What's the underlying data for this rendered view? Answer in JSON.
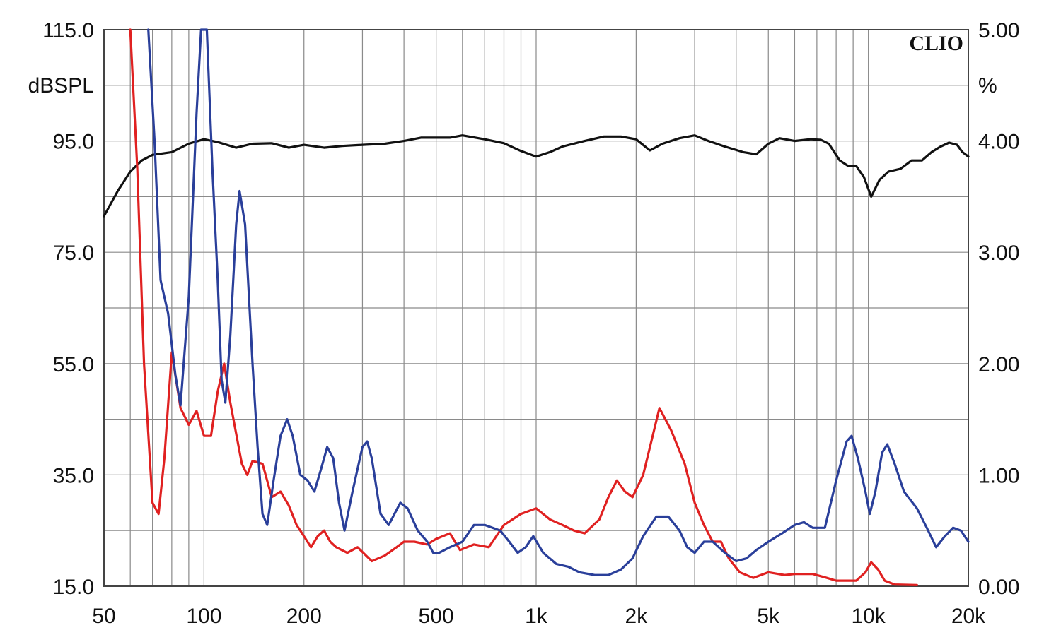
{
  "chart_data": {
    "type": "line",
    "brand": "CLIO",
    "ylabel": "dBSPL",
    "ylabel_right": "%",
    "xscale": "log",
    "xlim": [
      50,
      20000
    ],
    "ylim": [
      15,
      115
    ],
    "ylim_right": [
      0,
      5
    ],
    "grid": true,
    "x_ticks": [
      {
        "v": 50,
        "label": "50"
      },
      {
        "v": 100,
        "label": "100"
      },
      {
        "v": 200,
        "label": "200"
      },
      {
        "v": 500,
        "label": "500"
      },
      {
        "v": 1000,
        "label": "1k"
      },
      {
        "v": 2000,
        "label": "2k"
      },
      {
        "v": 5000,
        "label": "5k"
      },
      {
        "v": 10000,
        "label": "10k"
      },
      {
        "v": 20000,
        "label": "20k"
      }
    ],
    "y_ticks": [
      {
        "v": 115,
        "label": "115.0"
      },
      {
        "v": 95,
        "label": "95.0"
      },
      {
        "v": 75,
        "label": "75.0"
      },
      {
        "v": 55,
        "label": "55.0"
      },
      {
        "v": 35,
        "label": "35.0"
      },
      {
        "v": 15,
        "label": "15.0"
      }
    ],
    "y_ticks_right": [
      {
        "v": 5,
        "label": "5.00"
      },
      {
        "v": 4,
        "label": "4.00"
      },
      {
        "v": 3,
        "label": "3.00"
      },
      {
        "v": 2,
        "label": "2.00"
      },
      {
        "v": 1,
        "label": "1.00"
      },
      {
        "v": 0,
        "label": "0.00"
      }
    ],
    "series": [
      {
        "color": "#111111",
        "axis": "left",
        "points": [
          [
            50,
            81.5
          ],
          [
            55,
            86
          ],
          [
            60,
            89.5
          ],
          [
            65,
            91.5
          ],
          [
            70,
            92.5
          ],
          [
            80,
            93
          ],
          [
            90,
            94.5
          ],
          [
            100,
            95.3
          ],
          [
            110,
            94.8
          ],
          [
            125,
            93.8
          ],
          [
            140,
            94.5
          ],
          [
            160,
            94.6
          ],
          [
            180,
            93.8
          ],
          [
            200,
            94.3
          ],
          [
            230,
            93.8
          ],
          [
            260,
            94.1
          ],
          [
            300,
            94.3
          ],
          [
            350,
            94.5
          ],
          [
            400,
            95
          ],
          [
            450,
            95.6
          ],
          [
            500,
            95.6
          ],
          [
            550,
            95.6
          ],
          [
            600,
            96
          ],
          [
            700,
            95.3
          ],
          [
            800,
            94.6
          ],
          [
            900,
            93.2
          ],
          [
            1000,
            92.2
          ],
          [
            1100,
            93
          ],
          [
            1200,
            94
          ],
          [
            1400,
            95
          ],
          [
            1600,
            95.8
          ],
          [
            1800,
            95.8
          ],
          [
            2000,
            95.3
          ],
          [
            2200,
            93.3
          ],
          [
            2400,
            94.5
          ],
          [
            2700,
            95.5
          ],
          [
            3000,
            96
          ],
          [
            3300,
            95
          ],
          [
            3700,
            94
          ],
          [
            4200,
            93
          ],
          [
            4600,
            92.6
          ],
          [
            5000,
            94.5
          ],
          [
            5400,
            95.5
          ],
          [
            6000,
            95
          ],
          [
            6700,
            95.3
          ],
          [
            7200,
            95.2
          ],
          [
            7600,
            94.5
          ],
          [
            8200,
            91.5
          ],
          [
            8700,
            90.5
          ],
          [
            9200,
            90.5
          ],
          [
            9700,
            88.5
          ],
          [
            10200,
            85
          ],
          [
            10800,
            88
          ],
          [
            11500,
            89.5
          ],
          [
            12500,
            90
          ],
          [
            13500,
            91.5
          ],
          [
            14500,
            91.5
          ],
          [
            15500,
            93
          ],
          [
            16500,
            94
          ],
          [
            17500,
            94.7
          ],
          [
            18500,
            94.3
          ],
          [
            19200,
            93
          ],
          [
            20000,
            92.2
          ]
        ]
      },
      {
        "color": "#e02121",
        "axis": "left",
        "points": [
          [
            60,
            115
          ],
          [
            63,
            90
          ],
          [
            66,
            55
          ],
          [
            70,
            30
          ],
          [
            73,
            28
          ],
          [
            76,
            38
          ],
          [
            80,
            57
          ],
          [
            85,
            47
          ],
          [
            90,
            44
          ],
          [
            95,
            46.5
          ],
          [
            100,
            42
          ],
          [
            105,
            42
          ],
          [
            110,
            50
          ],
          [
            115,
            55
          ],
          [
            120,
            48
          ],
          [
            130,
            37
          ],
          [
            135,
            35
          ],
          [
            140,
            37.5
          ],
          [
            150,
            37
          ],
          [
            160,
            31
          ],
          [
            170,
            32
          ],
          [
            180,
            29.5
          ],
          [
            190,
            26
          ],
          [
            200,
            24
          ],
          [
            210,
            22
          ],
          [
            220,
            24
          ],
          [
            230,
            25
          ],
          [
            240,
            23
          ],
          [
            250,
            22
          ],
          [
            270,
            21
          ],
          [
            290,
            22
          ],
          [
            320,
            19.5
          ],
          [
            350,
            20.5
          ],
          [
            380,
            22
          ],
          [
            400,
            23
          ],
          [
            430,
            23
          ],
          [
            470,
            22.5
          ],
          [
            500,
            23.5
          ],
          [
            550,
            24.5
          ],
          [
            590,
            21.5
          ],
          [
            650,
            22.5
          ],
          [
            720,
            22
          ],
          [
            800,
            26
          ],
          [
            900,
            28
          ],
          [
            1000,
            29
          ],
          [
            1100,
            27
          ],
          [
            1200,
            26
          ],
          [
            1300,
            25
          ],
          [
            1400,
            24.5
          ],
          [
            1550,
            27
          ],
          [
            1650,
            31
          ],
          [
            1750,
            34
          ],
          [
            1850,
            32
          ],
          [
            1950,
            31
          ],
          [
            2100,
            35
          ],
          [
            2350,
            47
          ],
          [
            2550,
            43
          ],
          [
            2800,
            37
          ],
          [
            3000,
            30
          ],
          [
            3200,
            26
          ],
          [
            3400,
            23
          ],
          [
            3600,
            23
          ],
          [
            3800,
            20
          ],
          [
            4100,
            17.5
          ],
          [
            4500,
            16.5
          ],
          [
            5000,
            17.5
          ],
          [
            5600,
            17
          ],
          [
            6000,
            17.2
          ],
          [
            6800,
            17.2
          ],
          [
            7500,
            16.5
          ],
          [
            8000,
            16
          ],
          [
            8500,
            16
          ],
          [
            9200,
            16
          ],
          [
            9800,
            17.5
          ],
          [
            10200,
            19.3
          ],
          [
            10700,
            18
          ],
          [
            11200,
            16
          ],
          [
            12000,
            15.3
          ],
          [
            14000,
            15.2
          ]
        ]
      },
      {
        "color": "#2a3f9a",
        "axis": "left",
        "points": [
          [
            68,
            115
          ],
          [
            71,
            95
          ],
          [
            74,
            70
          ],
          [
            78,
            64
          ],
          [
            82,
            53
          ],
          [
            85,
            47.5
          ],
          [
            90,
            67
          ],
          [
            95,
            100
          ],
          [
            98,
            115
          ],
          [
            102,
            115
          ],
          [
            106,
            90
          ],
          [
            110,
            70
          ],
          [
            113,
            52
          ],
          [
            116,
            48
          ],
          [
            120,
            60
          ],
          [
            125,
            80
          ],
          [
            128,
            86
          ],
          [
            133,
            80
          ],
          [
            140,
            55
          ],
          [
            145,
            40
          ],
          [
            150,
            28
          ],
          [
            155,
            26
          ],
          [
            162,
            34
          ],
          [
            170,
            42
          ],
          [
            178,
            45
          ],
          [
            185,
            42
          ],
          [
            195,
            35
          ],
          [
            205,
            34
          ],
          [
            215,
            32
          ],
          [
            225,
            36
          ],
          [
            235,
            40
          ],
          [
            245,
            38
          ],
          [
            255,
            30
          ],
          [
            265,
            25
          ],
          [
            280,
            32
          ],
          [
            300,
            40
          ],
          [
            310,
            41
          ],
          [
            320,
            38
          ],
          [
            340,
            28
          ],
          [
            360,
            26
          ],
          [
            390,
            30
          ],
          [
            410,
            29
          ],
          [
            440,
            25
          ],
          [
            470,
            23
          ],
          [
            490,
            21
          ],
          [
            510,
            21
          ],
          [
            550,
            22
          ],
          [
            600,
            23
          ],
          [
            650,
            26
          ],
          [
            700,
            26
          ],
          [
            780,
            25
          ],
          [
            830,
            23
          ],
          [
            880,
            21
          ],
          [
            930,
            22
          ],
          [
            980,
            24
          ],
          [
            1050,
            21
          ],
          [
            1150,
            19
          ],
          [
            1250,
            18.5
          ],
          [
            1350,
            17.5
          ],
          [
            1500,
            17
          ],
          [
            1650,
            17
          ],
          [
            1800,
            18
          ],
          [
            1950,
            20
          ],
          [
            2100,
            24
          ],
          [
            2300,
            27.5
          ],
          [
            2500,
            27.5
          ],
          [
            2700,
            25
          ],
          [
            2850,
            22
          ],
          [
            3000,
            21
          ],
          [
            3200,
            23
          ],
          [
            3400,
            23
          ],
          [
            3700,
            21
          ],
          [
            4000,
            19.5
          ],
          [
            4300,
            20
          ],
          [
            4600,
            21.5
          ],
          [
            5000,
            23
          ],
          [
            5500,
            24.5
          ],
          [
            6000,
            26
          ],
          [
            6400,
            26.5
          ],
          [
            6800,
            25.5
          ],
          [
            7400,
            25.5
          ],
          [
            8000,
            34
          ],
          [
            8600,
            41
          ],
          [
            8900,
            42
          ],
          [
            9300,
            38
          ],
          [
            9800,
            32
          ],
          [
            10100,
            28
          ],
          [
            10500,
            32
          ],
          [
            11000,
            39
          ],
          [
            11400,
            40.5
          ],
          [
            12000,
            37
          ],
          [
            12800,
            32
          ],
          [
            14000,
            29
          ],
          [
            15000,
            25.5
          ],
          [
            16000,
            22
          ],
          [
            17000,
            24
          ],
          [
            18000,
            25.5
          ],
          [
            19000,
            25
          ],
          [
            20000,
            23
          ]
        ]
      }
    ]
  }
}
